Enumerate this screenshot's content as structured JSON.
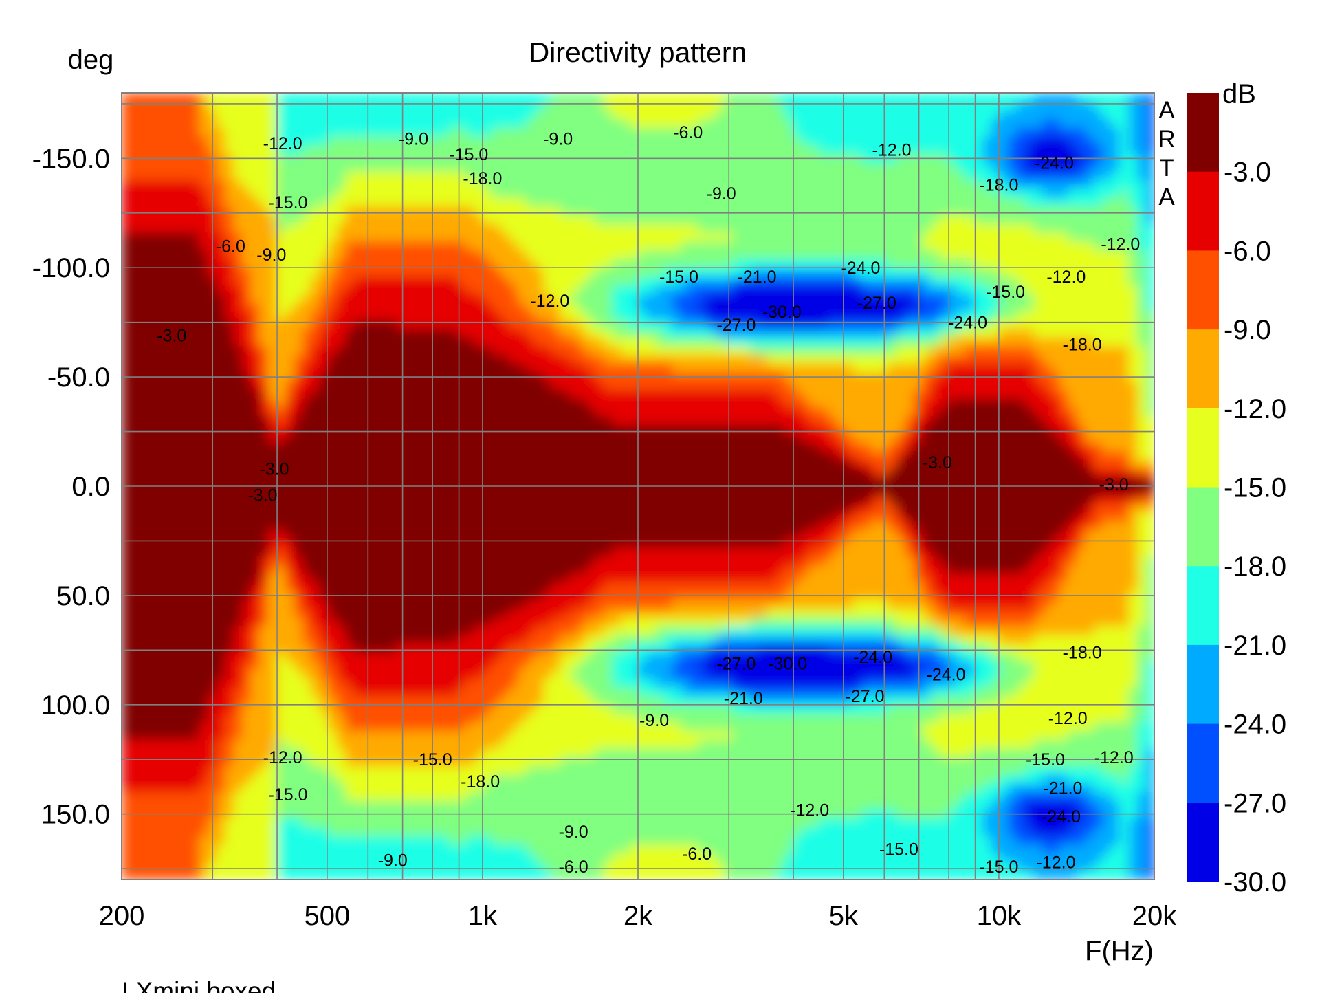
{
  "chart_data": {
    "type": "heatmap",
    "title": "Directivity pattern",
    "ylabel": "deg",
    "xlabel": "F(Hz)",
    "colorbar_label": "dB",
    "note": "LXmini boxed",
    "watermark": [
      "A",
      "R",
      "T",
      "A"
    ],
    "x_scale": "log",
    "xlim": [
      200,
      20000
    ],
    "ylim": [
      -180,
      180
    ],
    "y_inverted": true,
    "grid": true,
    "x_ticks": [
      {
        "value": 200,
        "label": "200"
      },
      {
        "value": 500,
        "label": "500"
      },
      {
        "value": 1000,
        "label": "1k"
      },
      {
        "value": 2000,
        "label": "2k"
      },
      {
        "value": 5000,
        "label": "5k"
      },
      {
        "value": 10000,
        "label": "10k"
      },
      {
        "value": 20000,
        "label": "20k"
      }
    ],
    "x_minor_grid": [
      300,
      400,
      600,
      700,
      800,
      900,
      3000,
      4000,
      6000,
      7000,
      8000,
      9000
    ],
    "y_ticks": [
      {
        "value": -150,
        "label": "-150.0"
      },
      {
        "value": -100,
        "label": "-100.0"
      },
      {
        "value": -50,
        "label": "-50.0"
      },
      {
        "value": 0,
        "label": "0.0"
      },
      {
        "value": 50,
        "label": "50.0"
      },
      {
        "value": 100,
        "label": "100.0"
      },
      {
        "value": 150,
        "label": "150.0"
      }
    ],
    "y_grid_values": [
      -175,
      -150,
      -125,
      -100,
      -75,
      -50,
      -25,
      0,
      25,
      50,
      75,
      100,
      125,
      150,
      175
    ],
    "colorbar": {
      "levels": [
        0,
        -3,
        -6,
        -9,
        -12,
        -15,
        -18,
        -21,
        -24,
        -27,
        -30
      ],
      "labels": [
        "-3.0",
        "-6.0",
        "-9.0",
        "-12.0",
        "-15.0",
        "-18.0",
        "-21.0",
        "-24.0",
        "-27.0",
        "-30.0"
      ],
      "colors": [
        "#800000",
        "#e60000",
        "#ff5000",
        "#ffaa00",
        "#e6ff1e",
        "#80ff80",
        "#1effe6",
        "#00aaff",
        "#0050ff",
        "#0000e6"
      ]
    },
    "contour_labels": [
      {
        "text": "-12.0",
        "f": 410,
        "deg": -157
      },
      {
        "text": "-9.0",
        "f": 735,
        "deg": -159
      },
      {
        "text": "-15.0",
        "f": 940,
        "deg": -152
      },
      {
        "text": "-18.0",
        "f": 1000,
        "deg": -141
      },
      {
        "text": "-9.0",
        "f": 1400,
        "deg": -159
      },
      {
        "text": "-6.0",
        "f": 2500,
        "deg": -162
      },
      {
        "text": "-12.0",
        "f": 6200,
        "deg": -154
      },
      {
        "text": "-15.0",
        "f": 420,
        "deg": -130
      },
      {
        "text": "-9.0",
        "f": 2900,
        "deg": -134
      },
      {
        "text": "-24.0",
        "f": 12800,
        "deg": -148
      },
      {
        "text": "-18.0",
        "f": 10000,
        "deg": -138
      },
      {
        "text": "-6.0",
        "f": 325,
        "deg": -110
      },
      {
        "text": "-9.0",
        "f": 390,
        "deg": -106
      },
      {
        "text": "-12.0",
        "f": 17200,
        "deg": -111
      },
      {
        "text": "-15.0",
        "f": 2400,
        "deg": -96
      },
      {
        "text": "-21.0",
        "f": 3400,
        "deg": -96
      },
      {
        "text": "-24.0",
        "f": 5400,
        "deg": -100
      },
      {
        "text": "-12.0",
        "f": 13500,
        "deg": -96
      },
      {
        "text": "-12.0",
        "f": 1350,
        "deg": -85
      },
      {
        "text": "-30.0",
        "f": 3800,
        "deg": -80
      },
      {
        "text": "-27.0",
        "f": 5800,
        "deg": -84
      },
      {
        "text": "-15.0",
        "f": 10300,
        "deg": -89
      },
      {
        "text": "-27.0",
        "f": 3100,
        "deg": -74
      },
      {
        "text": "-24.0",
        "f": 8700,
        "deg": -75
      },
      {
        "text": "-3.0",
        "f": 250,
        "deg": -69
      },
      {
        "text": "-18.0",
        "f": 14500,
        "deg": -65
      },
      {
        "text": "-3.0",
        "f": 375,
        "deg": 4
      },
      {
        "text": "-3.0",
        "f": 395,
        "deg": -8
      },
      {
        "text": "-3.0",
        "f": 7600,
        "deg": -11
      },
      {
        "text": "-3.0",
        "f": 16700,
        "deg": -1
      },
      {
        "text": "-18.0",
        "f": 14500,
        "deg": 76
      },
      {
        "text": "-27.0",
        "f": 3100,
        "deg": 81
      },
      {
        "text": "-30.0",
        "f": 3900,
        "deg": 81
      },
      {
        "text": "-24.0",
        "f": 5700,
        "deg": 78
      },
      {
        "text": "-24.0",
        "f": 7900,
        "deg": 86
      },
      {
        "text": "-21.0",
        "f": 3200,
        "deg": 97
      },
      {
        "text": "-27.0",
        "f": 5500,
        "deg": 96
      },
      {
        "text": "-9.0",
        "f": 2150,
        "deg": 107
      },
      {
        "text": "-12.0",
        "f": 13600,
        "deg": 106
      },
      {
        "text": "-12.0",
        "f": 410,
        "deg": 124
      },
      {
        "text": "-15.0",
        "f": 800,
        "deg": 125
      },
      {
        "text": "-18.0",
        "f": 990,
        "deg": 135
      },
      {
        "text": "-15.0",
        "f": 12300,
        "deg": 125
      },
      {
        "text": "-12.0",
        "f": 16700,
        "deg": 124
      },
      {
        "text": "-21.0",
        "f": 13300,
        "deg": 138
      },
      {
        "text": "-15.0",
        "f": 420,
        "deg": 141
      },
      {
        "text": "-12.0",
        "f": 4300,
        "deg": 148
      },
      {
        "text": "-24.0",
        "f": 13200,
        "deg": 151
      },
      {
        "text": "-9.0",
        "f": 1500,
        "deg": 158
      },
      {
        "text": "-6.0",
        "f": 2600,
        "deg": 168
      },
      {
        "text": "-15.0",
        "f": 6400,
        "deg": 166
      },
      {
        "text": "-9.0",
        "f": 670,
        "deg": 171
      },
      {
        "text": "-6.0",
        "f": 1500,
        "deg": 174
      },
      {
        "text": "-15.0",
        "f": 10000,
        "deg": 174
      },
      {
        "text": "-12.0",
        "f": 12900,
        "deg": 172
      }
    ]
  }
}
